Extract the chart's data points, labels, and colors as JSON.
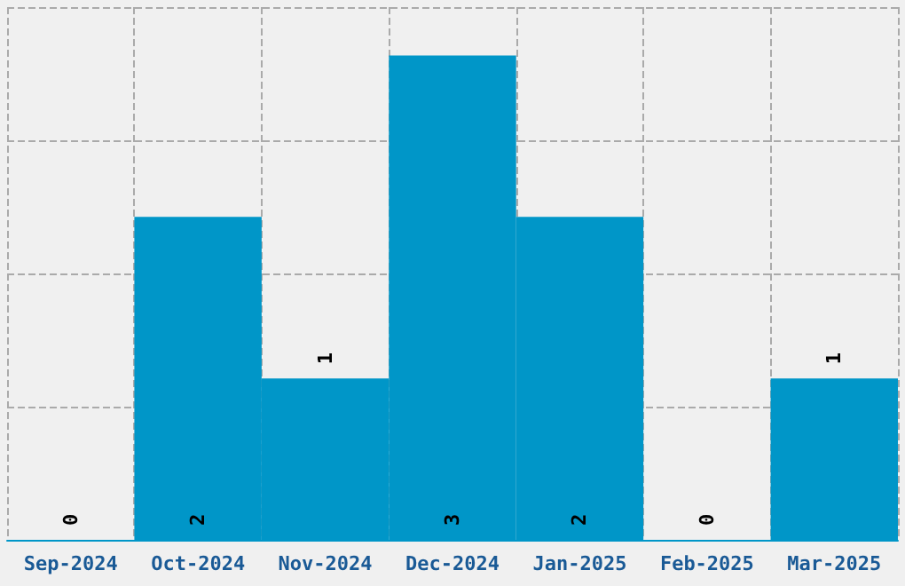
{
  "chart_data": {
    "type": "bar",
    "categories": [
      "Sep-2024",
      "Oct-2024",
      "Nov-2024",
      "Dec-2024",
      "Jan-2025",
      "Feb-2025",
      "Mar-2025"
    ],
    "values": [
      0,
      2,
      1,
      3,
      2,
      0,
      1
    ],
    "color": "#0096c8",
    "data_labels": true,
    "grid": true,
    "tick_labels": "x",
    "ylim": [
      0,
      3.3
    ],
    "yticks": [
      {
        "value": 0,
        "label": null
      },
      {
        "value": 0.825,
        "label": null
      },
      {
        "value": 1.65,
        "label": null
      },
      {
        "value": 2.475,
        "label": null
      },
      {
        "value": 3.3,
        "label": null
      }
    ]
  }
}
